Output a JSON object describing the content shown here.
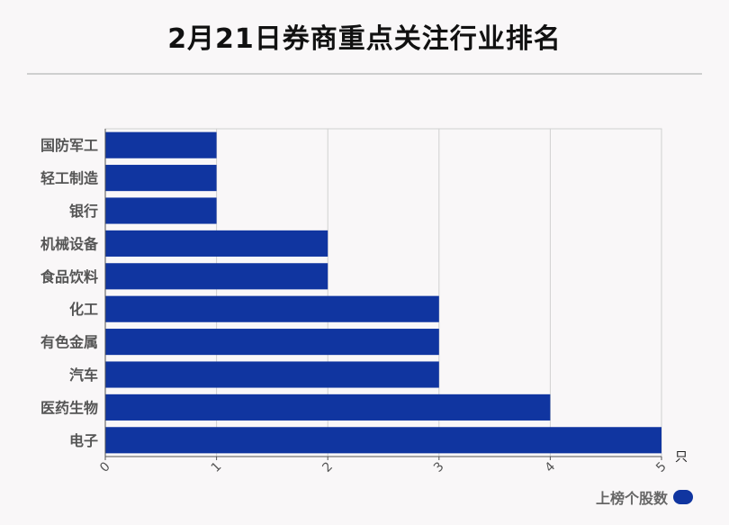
{
  "title": "2月21日券商重点关注行业排名",
  "legend": {
    "label": "上榜个股数",
    "position": "bottom-right"
  },
  "colors": {
    "bar": "#1035a0",
    "grid": "#d0d0d0",
    "axis": "#555555"
  },
  "chart_data": {
    "type": "bar",
    "orientation": "horizontal",
    "title": "2月21日券商重点关注行业排名",
    "categories": [
      "国防军工",
      "轻工制造",
      "银行",
      "机械设备",
      "食品饮料",
      "化工",
      "有色金属",
      "汽车",
      "医药生物",
      "电子"
    ],
    "series": [
      {
        "name": "上榜个股数",
        "values": [
          1,
          1,
          1,
          2,
          2,
          3,
          3,
          3,
          4,
          5
        ]
      }
    ],
    "xlim": [
      0,
      5
    ],
    "xticks": [
      "0",
      "1",
      "2",
      "3",
      "4",
      "5"
    ],
    "xunit": "只",
    "grid": true,
    "legend": "bottom-right"
  }
}
